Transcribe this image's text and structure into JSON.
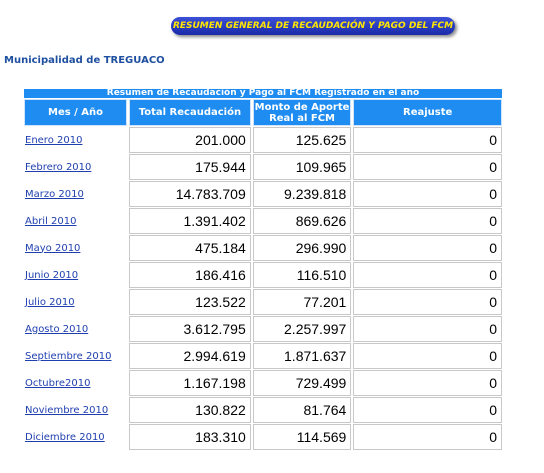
{
  "header": {
    "title": "RESUMEN GENERAL DE RECAUDACIÓN Y PAGO DEL FCM",
    "municipality": "Municipalidad de TREGUACO"
  },
  "table": {
    "caption": "Resumen de Recaudación y Pago al FCM Registrado en el año",
    "columns": [
      "Mes / Año",
      "Total Recaudación",
      "Monto de Aporte Real al FCM",
      "Reajuste"
    ],
    "rows": [
      [
        "Enero 2010",
        "201.000",
        "125.625",
        "0"
      ],
      [
        "Febrero 2010",
        "175.944",
        "109.965",
        "0"
      ],
      [
        "Marzo 2010",
        "14.783.709",
        "9.239.818",
        "0"
      ],
      [
        "Abril 2010",
        "1.391.402",
        "869.626",
        "0"
      ],
      [
        "Mayo 2010",
        "475.184",
        "296.990",
        "0"
      ],
      [
        "Junio 2010",
        "186.416",
        "116.510",
        "0"
      ],
      [
        "Julio 2010",
        "123.522",
        "77.201",
        "0"
      ],
      [
        "Agosto 2010",
        "3.612.795",
        "2.257.997",
        "0"
      ],
      [
        "Septiembre 2010",
        "2.994.619",
        "1.871.637",
        "0"
      ],
      [
        "Octubre2010",
        "1.167.198",
        "729.499",
        "0"
      ],
      [
        "Noviembre 2010",
        "130.822",
        "81.764",
        "0"
      ],
      [
        "Diciembre 2010",
        "183.310",
        "114.569",
        "0"
      ]
    ]
  }
}
